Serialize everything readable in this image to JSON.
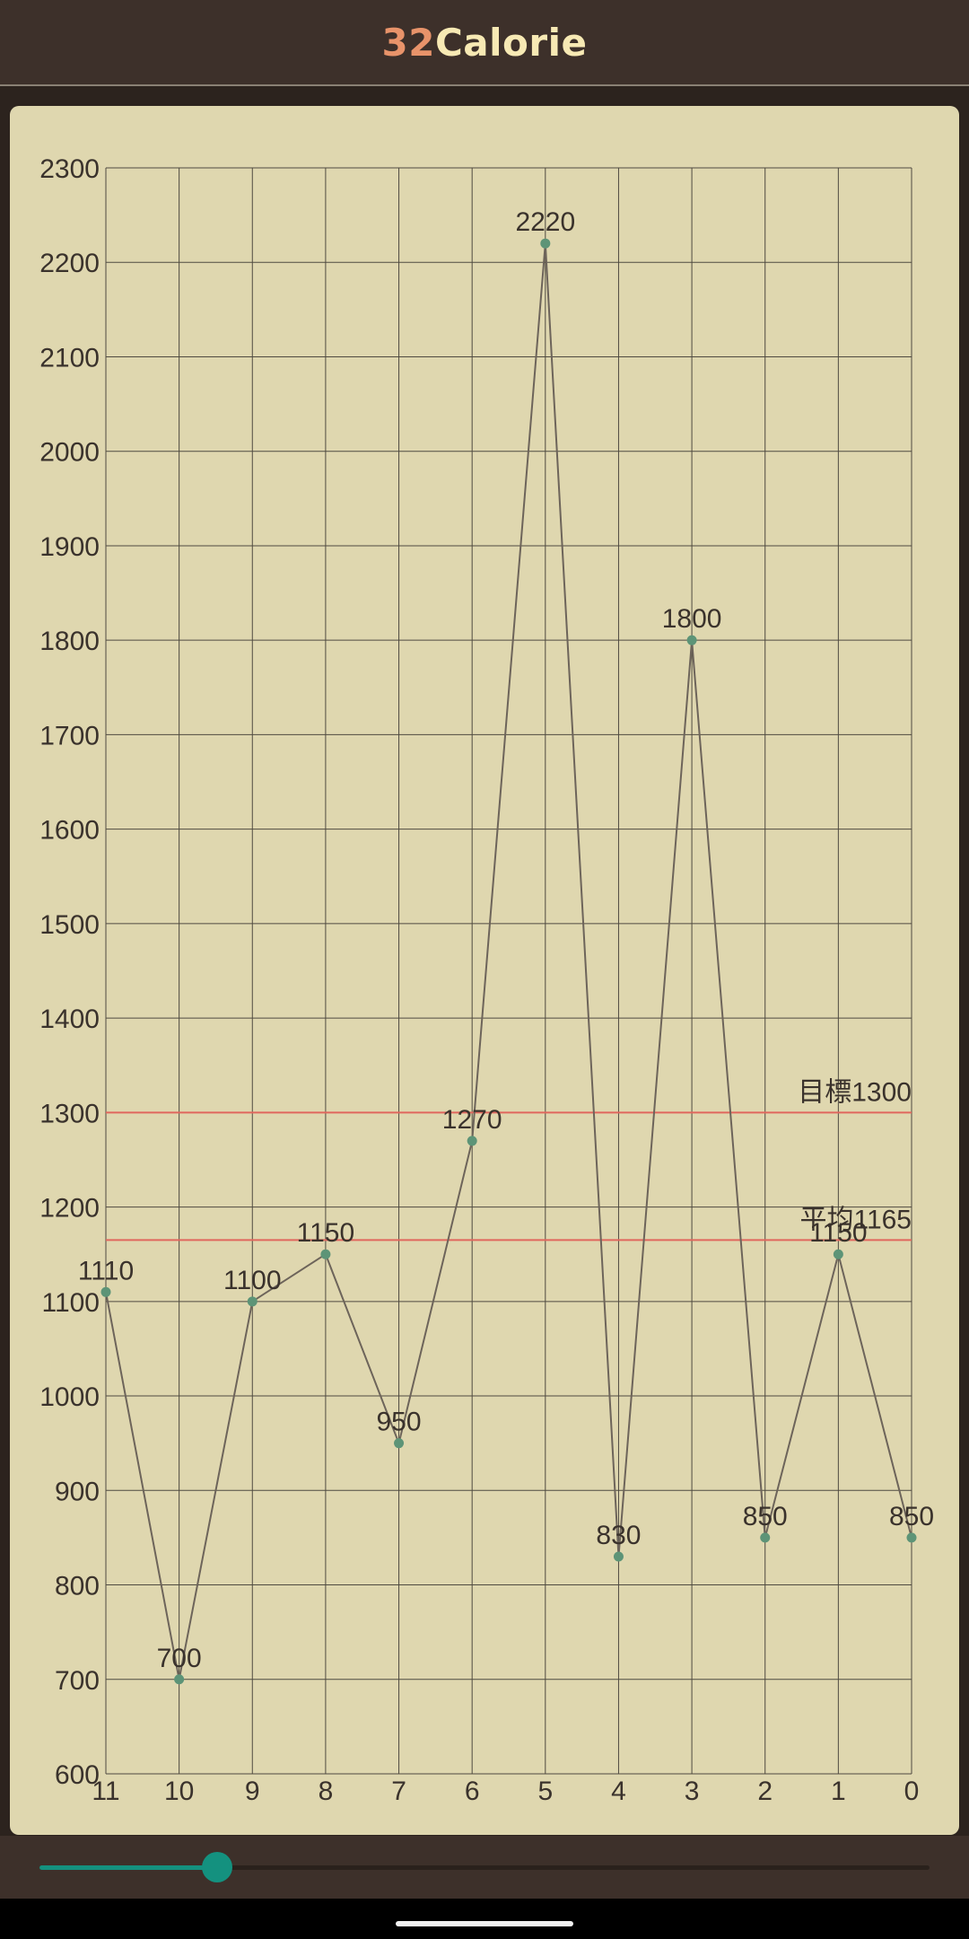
{
  "app": {
    "title_number": "32",
    "title_word": "Calorie"
  },
  "chart_data": {
    "type": "line",
    "title": "",
    "xlabel": "",
    "ylabel": "",
    "categories": [
      "11",
      "10",
      "9",
      "8",
      "7",
      "6",
      "5",
      "4",
      "3",
      "2",
      "1",
      "0"
    ],
    "values": [
      1110,
      700,
      1100,
      1150,
      950,
      1270,
      2220,
      830,
      1800,
      850,
      1150,
      850
    ],
    "value_labels": [
      "1110",
      "700",
      "1100",
      "1150",
      "950",
      "1270",
      "2220",
      "830",
      "1800",
      "850",
      "1150",
      "850"
    ],
    "ylim": [
      600,
      2300
    ],
    "yticks": [
      600,
      700,
      800,
      900,
      1000,
      1100,
      1200,
      1300,
      1400,
      1500,
      1600,
      1700,
      1800,
      1900,
      2000,
      2100,
      2200,
      2300
    ],
    "grid": true,
    "reference_lines": [
      {
        "name": "target",
        "label": "目標1300",
        "value": 1300
      },
      {
        "name": "average",
        "label": "平均1165",
        "value": 1165
      }
    ],
    "colors": {
      "line": "#6d645a",
      "point": "#5d9477",
      "grid": "#4f4a40",
      "reference": "#e0675e",
      "text": "#3a322c"
    }
  },
  "slider": {
    "value_fraction": 0.2
  }
}
